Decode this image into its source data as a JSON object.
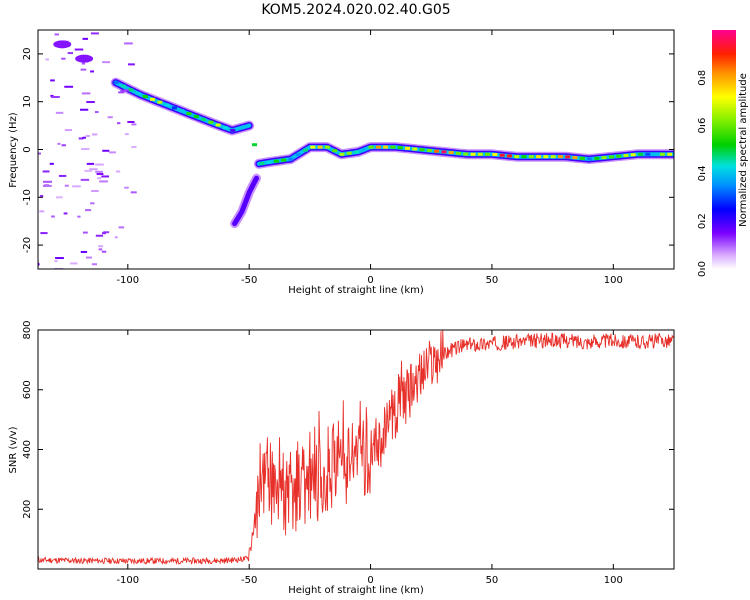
{
  "title": "KOM5.2024.020.02.40.G05",
  "chart_data": [
    {
      "type": "heatmap",
      "xlabel": "Height of straight line (km)",
      "ylabel": "Frequency (Hz)",
      "xlim": [
        -137,
        125
      ],
      "ylim": [
        -25,
        25
      ],
      "xticks": [
        -100,
        -50,
        0,
        50,
        100
      ],
      "yticks": [
        -20,
        -10,
        0,
        10,
        20
      ],
      "colorbar": {
        "label": "Normalized spectral amplitude",
        "range": [
          0,
          1
        ],
        "ticks": [
          0.0,
          0.2,
          0.4,
          0.6,
          0.8
        ],
        "colormap": "rainbow"
      },
      "trace": {
        "x": [
          -105,
          -95,
          -85,
          -75,
          -65,
          -57,
          -50,
          -46,
          -40,
          -33,
          -25,
          -18,
          -12,
          -5,
          0,
          10,
          20,
          30,
          40,
          50,
          60,
          70,
          80,
          90,
          100,
          110,
          120,
          125
        ],
        "y": [
          14,
          11.5,
          9.5,
          7.5,
          5.5,
          4,
          5,
          -3,
          -2.5,
          -2,
          0.5,
          0.5,
          -1,
          -0.5,
          0.5,
          0.5,
          0,
          -0.5,
          -1,
          -1,
          -1.5,
          -1.5,
          -1.5,
          -2,
          -1.5,
          -1,
          -1,
          -1
        ]
      },
      "lower_branch": {
        "x": [
          -56,
          -53,
          -50,
          -47
        ],
        "y": [
          -15.5,
          -13,
          -9,
          -6
        ]
      },
      "grid": false,
      "legend": "none"
    },
    {
      "type": "line",
      "xlabel": "Height of straight line (km)",
      "ylabel": "SNR (v/v)",
      "xlim": [
        -137,
        125
      ],
      "ylim": [
        0,
        800
      ],
      "xticks": [
        -100,
        -50,
        0,
        50,
        100
      ],
      "yticks": [
        200,
        400,
        600,
        800
      ],
      "series": [
        {
          "color": "#e8302a",
          "x": [
            -137,
            -120,
            -100,
            -80,
            -60,
            -50,
            -47,
            -44,
            -42,
            -40,
            -37,
            -35,
            -30,
            -25,
            -20,
            -15,
            -10,
            -5,
            0,
            5,
            10,
            15,
            20,
            25,
            30,
            35,
            40,
            50,
            60,
            70,
            80,
            90,
            100,
            110,
            120,
            125
          ],
          "y": [
            30,
            28,
            27,
            27,
            28,
            35,
            120,
            280,
            330,
            220,
            320,
            200,
            260,
            280,
            300,
            320,
            330,
            380,
            380,
            440,
            520,
            580,
            640,
            690,
            720,
            740,
            750,
            755,
            760,
            765,
            765,
            760,
            765,
            760,
            765,
            765
          ]
        }
      ],
      "grid": false,
      "legend": "none"
    }
  ]
}
